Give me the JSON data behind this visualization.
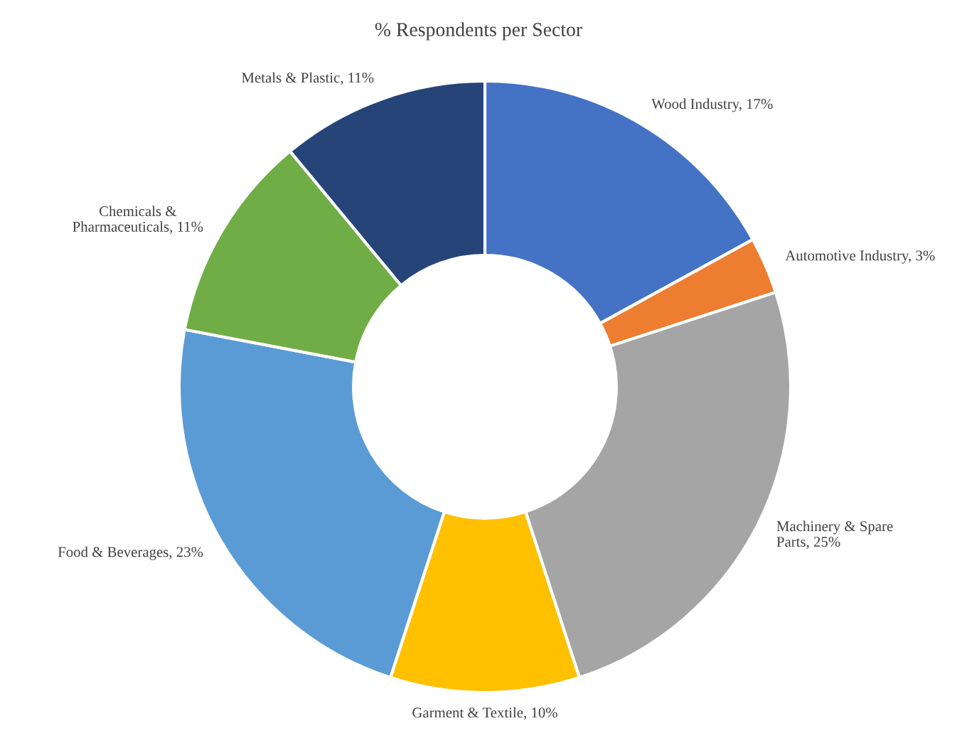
{
  "chart_data": {
    "type": "donut",
    "title": "% Respondents per Sector",
    "categories": [
      "Wood Industry",
      "Automotive Industry",
      "Machinery & Spare\nParts",
      "Garment & Textile",
      "Food & Beverages",
      "Chemicals &\nPharmaceuticals",
      "Metals & Plastic"
    ],
    "values": [
      17,
      3,
      25,
      10,
      23,
      11,
      11
    ],
    "value_labels": [
      "17%",
      "3%",
      "25%",
      "10%",
      "23%",
      "11%",
      "11%"
    ],
    "colors": [
      "#4472c4",
      "#ed7d31",
      "#a5a5a5",
      "#ffc000",
      "#5b9bd5",
      "#70ad47",
      "#264478"
    ],
    "legend": false
  }
}
